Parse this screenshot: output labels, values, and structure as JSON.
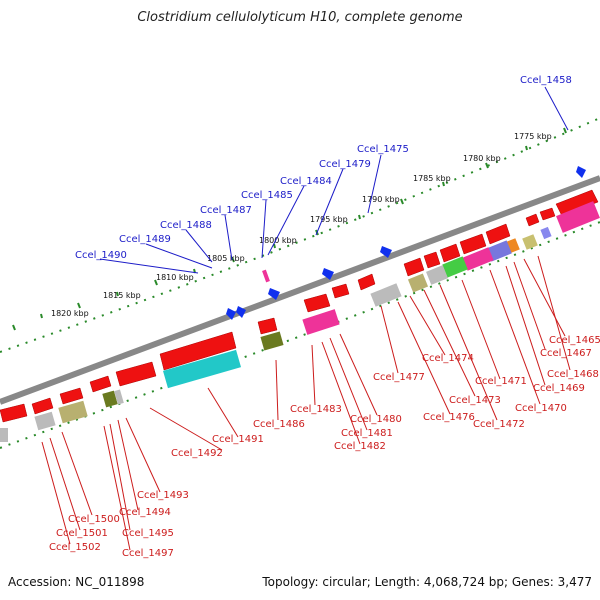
{
  "title": "Clostridium cellulolyticum H10, complete genome",
  "footer": {
    "accession": "Accession: NC_011898",
    "summary": "Topology: circular; Length: 4,068,724 bp; Genes: 3,477"
  },
  "kbp_ticks": [
    "1775 kbp",
    "1780 kbp",
    "1785 kbp",
    "1790 kbp",
    "1795 kbp",
    "1800 kbp",
    "1805 kbp",
    "1810 kbp",
    "1815 kbp",
    "1820 kbp"
  ],
  "blue_labels": [
    "Ccel_1458",
    "Ccel_1475",
    "Ccel_1479",
    "Ccel_1484",
    "Ccel_1485",
    "Ccel_1487",
    "Ccel_1488",
    "Ccel_1489",
    "Ccel_1490"
  ],
  "red_labels": [
    "Ccel_1465",
    "Ccel_1467",
    "Ccel_1468",
    "Ccel_1469",
    "Ccel_1470",
    "Ccel_1471",
    "Ccel_1472",
    "Ccel_1473",
    "Ccel_1474",
    "Ccel_1476",
    "Ccel_1477",
    "Ccel_1480",
    "Ccel_1481",
    "Ccel_1482",
    "Ccel_1483",
    "Ccel_1486",
    "Ccel_1491",
    "Ccel_1492",
    "Ccel_1493",
    "Ccel_1494",
    "Ccel_1495",
    "Ccel_1497",
    "Ccel_1500",
    "Ccel_1501",
    "Ccel_1502"
  ],
  "colors": {
    "backbone": "#888888",
    "forward_gene": "#ee1111",
    "tick_dots": "#2a8a2a",
    "blue_label": "#1c1cc8",
    "red_label": "#cc1c1c"
  }
}
